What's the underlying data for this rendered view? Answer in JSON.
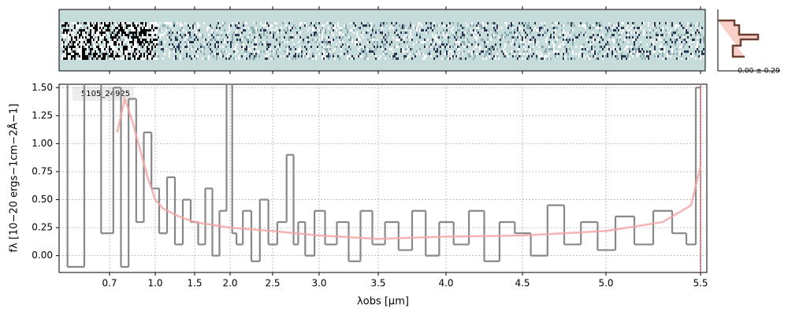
{
  "chart_data": {
    "type": "step",
    "annotation": "5105_24925",
    "histogram_label": "0.00 ± 0.29",
    "x_label": "λobs [μm]",
    "y_label": "fλ [10−20 ergs−1cm−2Å−1]",
    "xlim": [
      0.55,
      5.52
    ],
    "xticks": [
      0.7,
      {
        "value": 1.0,
        "label": "1.0"
      },
      1.5,
      {
        "value": 2.0,
        "label": "2.0"
      },
      2.5,
      {
        "value": 3.0,
        "label": "3.0"
      },
      3.5,
      {
        "value": 4.0,
        "label": "4.0"
      },
      4.5,
      {
        "value": 5.0,
        "label": "5.0"
      },
      5.5
    ],
    "ylim": [
      -0.15,
      1.53
    ],
    "yticks": [
      {
        "value": 0,
        "label": "0.00"
      },
      {
        "value": 0.25,
        "label": "0.25"
      },
      {
        "value": 0.5,
        "label": "0.50"
      },
      {
        "value": 0.75,
        "label": "0.75"
      },
      {
        "value": 1.0,
        "label": "1.00"
      },
      {
        "value": 1.25,
        "label": "1.25"
      },
      {
        "value": 1.5,
        "label": "1.50"
      }
    ],
    "grid": true,
    "series": [
      {
        "color": "#888888",
        "style": "step",
        "x": [
          0.55,
          0.6,
          0.65,
          0.7,
          0.75,
          0.8,
          0.85,
          0.9,
          0.95,
          1.0,
          1.1,
          1.2,
          1.3,
          1.4,
          1.5,
          1.6,
          1.7,
          1.8,
          1.9,
          2.0,
          2.05,
          2.1,
          2.2,
          2.3,
          2.4,
          2.5,
          2.6,
          2.7,
          2.75,
          2.8,
          2.9,
          3.0,
          3.1,
          3.2,
          3.3,
          3.4,
          3.5,
          3.6,
          3.7,
          3.8,
          3.9,
          4.0,
          4.1,
          4.2,
          4.3,
          4.4,
          4.5,
          4.6,
          4.7,
          4.8,
          4.9,
          5.0,
          5.1,
          5.2,
          5.3,
          5.4,
          5.45,
          5.5
        ],
        "values": [
          1.6,
          -0.1,
          1.55,
          0.2,
          1.5,
          -0.1,
          1.4,
          0.3,
          1.1,
          0.6,
          0.2,
          0.7,
          0.1,
          0.5,
          0.3,
          0.1,
          0.6,
          0.0,
          0.4,
          1.55,
          0.2,
          0.1,
          0.4,
          -0.05,
          0.5,
          0.1,
          0.3,
          0.9,
          0.1,
          0.3,
          0.0,
          0.4,
          0.1,
          0.3,
          -0.05,
          0.4,
          0.1,
          0.3,
          0.05,
          0.4,
          0.0,
          0.3,
          0.1,
          0.4,
          -0.05,
          0.3,
          0.2,
          0.0,
          0.45,
          0.1,
          0.3,
          0.05,
          0.35,
          0.1,
          0.4,
          0.2,
          0.1,
          1.5
        ]
      },
      {
        "color": "#f4a6a6",
        "style": "line",
        "x": [
          0.75,
          0.8,
          0.85,
          0.9,
          0.95,
          1.0,
          1.1,
          1.3,
          1.5,
          2.0,
          2.5,
          3.0,
          3.5,
          4.0,
          4.5,
          5.0,
          5.3,
          5.45,
          5.5
        ],
        "values": [
          1.1,
          1.4,
          1.2,
          0.95,
          0.7,
          0.5,
          0.42,
          0.35,
          0.3,
          0.25,
          0.22,
          0.18,
          0.15,
          0.17,
          0.18,
          0.22,
          0.3,
          0.45,
          0.8
        ]
      }
    ]
  }
}
